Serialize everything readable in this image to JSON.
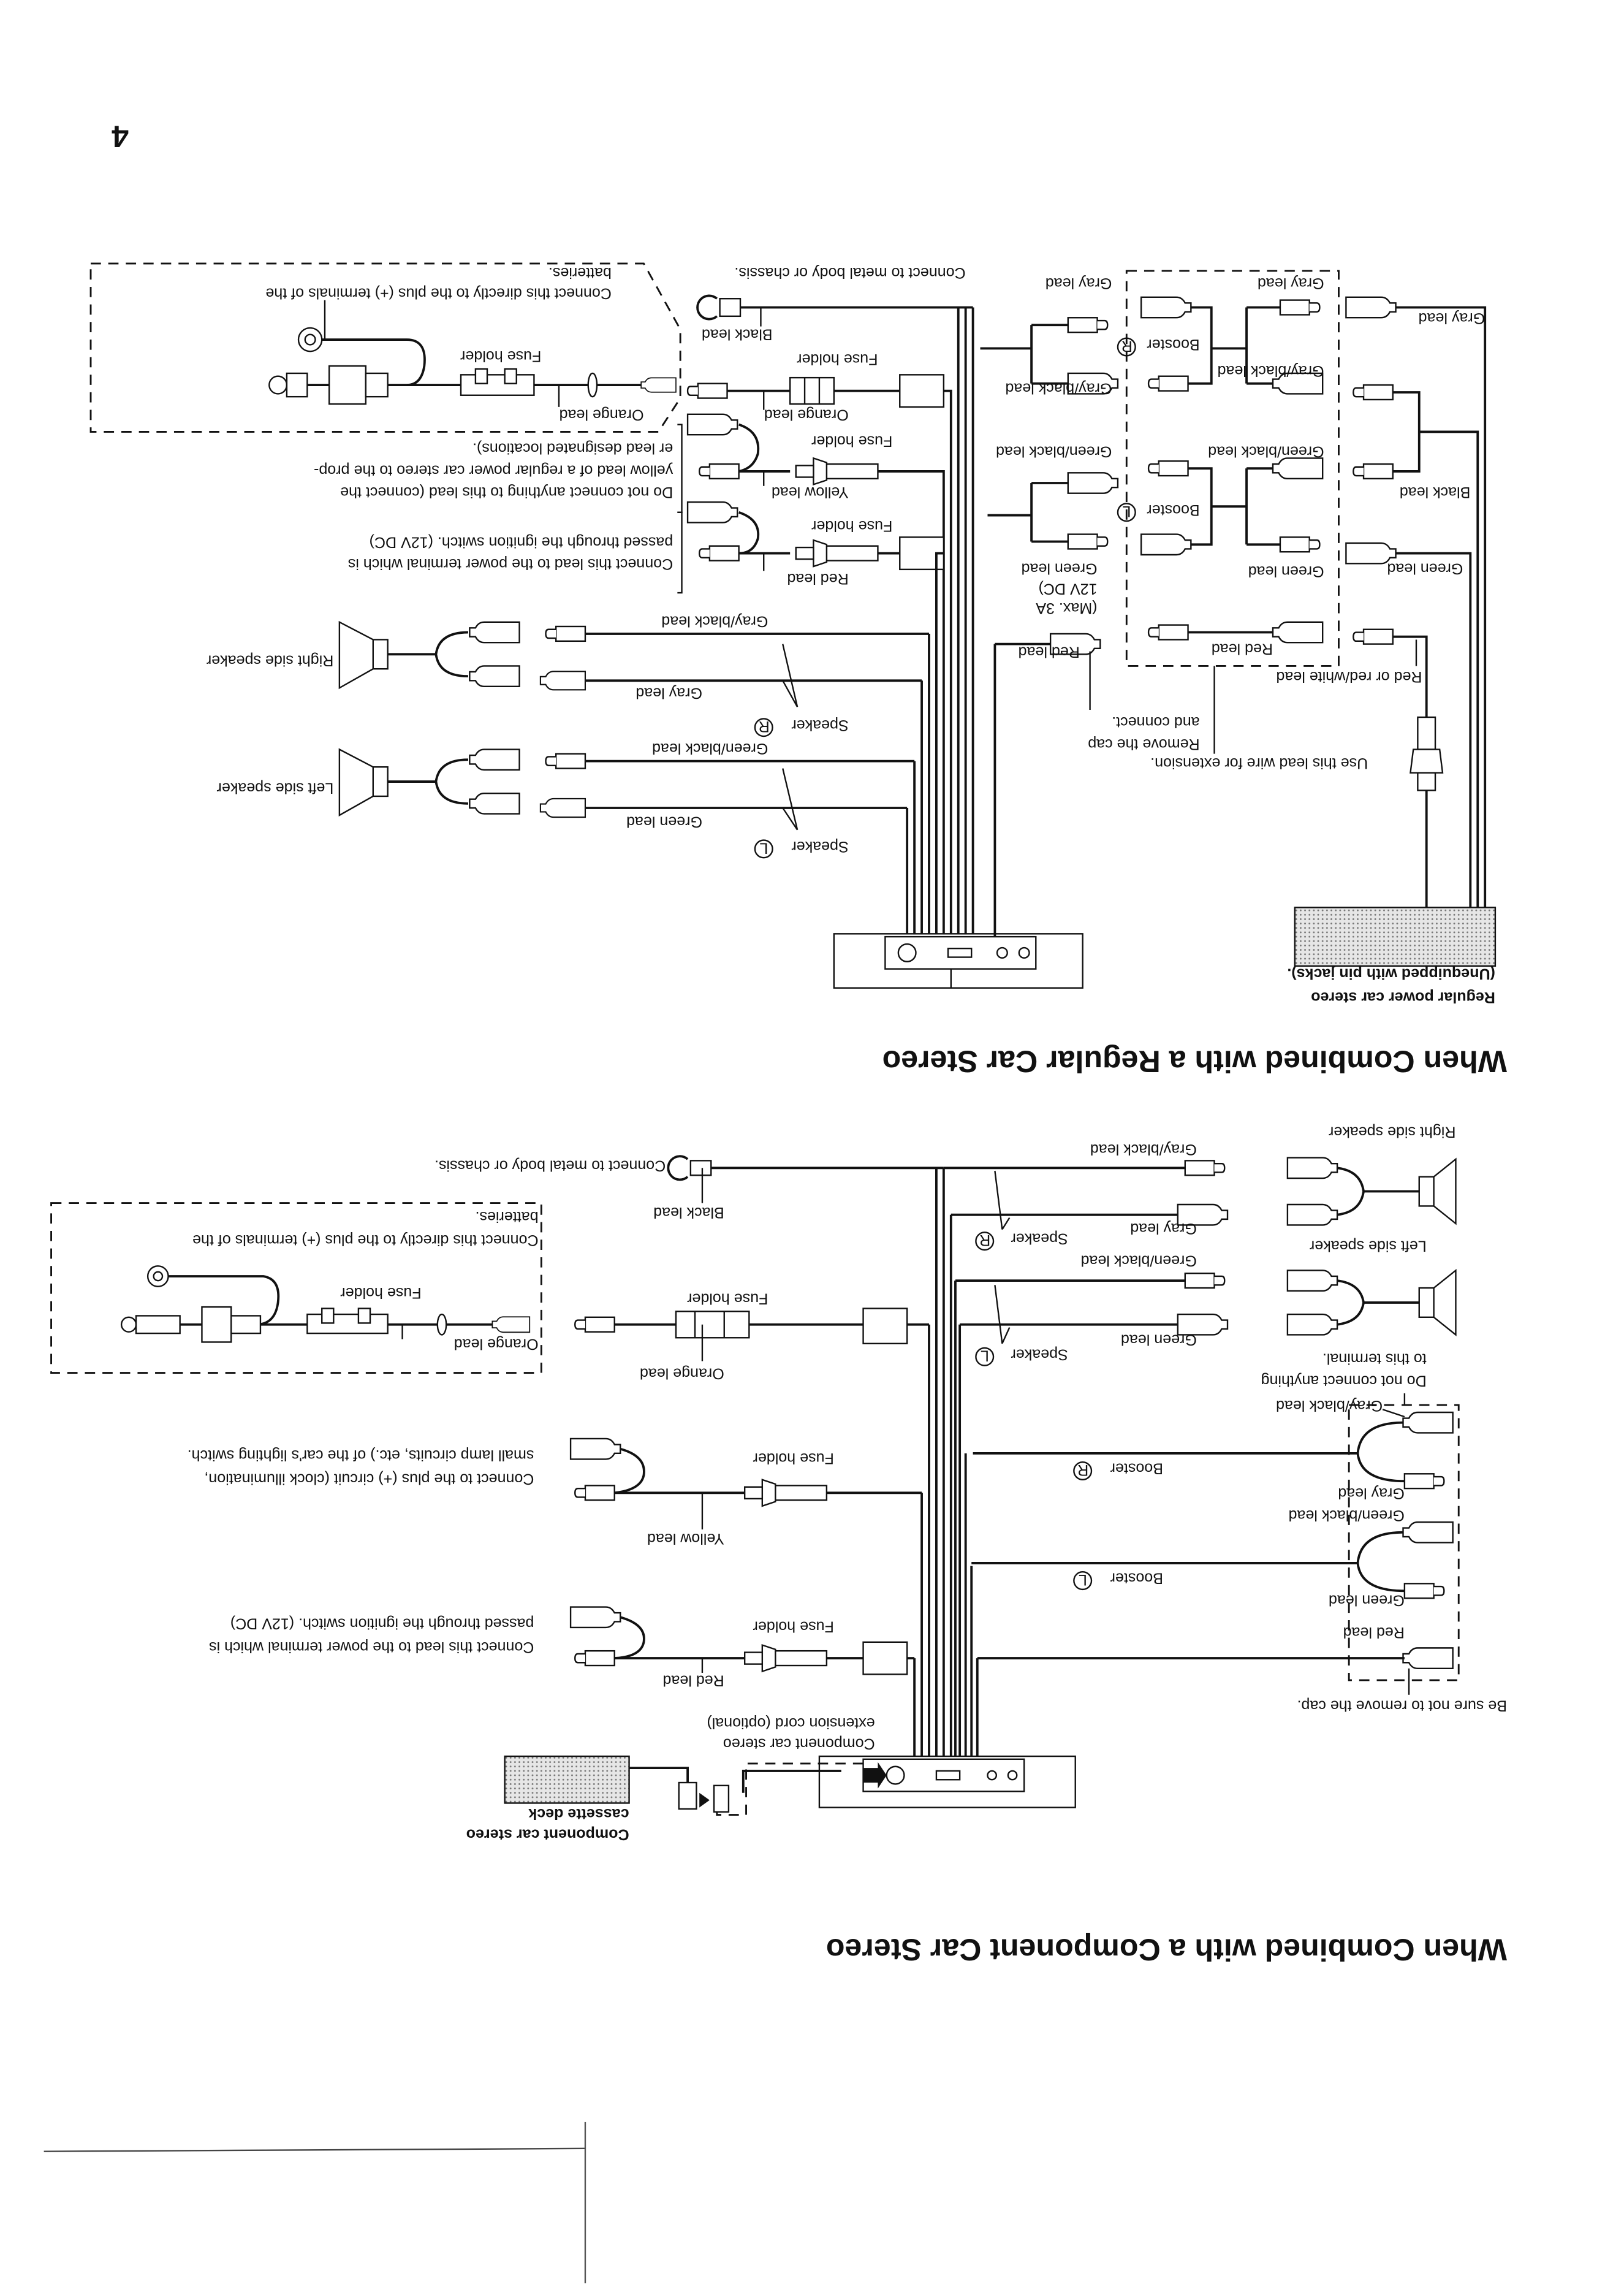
{
  "page_number": "4",
  "regular": {
    "title": "When Combined with a Regular Car Stereo",
    "battery_note": [
      "Connect this directly to the plus (+) terminals of the",
      "batteries."
    ],
    "fuse_holder": "Fuse holder",
    "orange_lead": "Orange lead",
    "black_lead": "Black lead",
    "ground_note": "Connect to metal body or chassis.",
    "yellow_lead": "Yellow lead",
    "yellow_note": [
      "Do not connect anything to this lead (connect the",
      "yellow lead of a regular power car stereo to the prop-",
      "er lead designated locations)."
    ],
    "red_lead": "Red lead",
    "red_note": [
      "Connect this lead to the power terminal which is",
      "passed through the ignition switch. (12V DC)"
    ],
    "right_speaker": "Right side speaker",
    "left_speaker": "Left side speaker",
    "gray_black_lead": "Gray/black lead",
    "gray_lead": "Gray lead",
    "green_black_lead": "Green/black lead",
    "green_lead": "Green lead",
    "speaker": "Speaker",
    "booster": "Booster",
    "R": "R",
    "L": "L",
    "max_note": [
      "(Max. 3A",
      "12V DC)"
    ],
    "remove_cap": [
      "Remove the cap",
      "and connect."
    ],
    "extension_note": "Use this lead wire for extension.",
    "red_white_lead": "Red or red/white lead",
    "stereo_label": [
      "Regular power car stereo",
      "(Unequipped with pin jacks)."
    ]
  },
  "component": {
    "title": "When Combined with a Component Car Stereo",
    "right_speaker": "Right side speaker",
    "left_speaker": "Left side speaker",
    "gray_black_lead": "Gray/black lead",
    "gray_lead": "Gray lead",
    "green_black_lead": "Green/black lead",
    "green_lead": "Green lead",
    "red_lead": "Red lead",
    "speaker": "Speaker",
    "booster": "Booster",
    "R": "R",
    "L": "L",
    "no_connect_note": [
      "Do not connect anything",
      "to this terminal."
    ],
    "cap_note": "Be sure not to remove the cap.",
    "ground_note": "Connect to metal body or chassis.",
    "black_lead": "Black lead",
    "battery_note": [
      "Connect this directly to the plus (+) terminals of the",
      "batteries."
    ],
    "fuse_holder": "Fuse holder",
    "orange_lead": "Orange lead",
    "yellow_lead": "Yellow lead",
    "yellow_note": [
      "Connect to the plus (+) circuit (clock illumination,",
      "small lamp circuits, etc.) of the car's lighting switch."
    ],
    "red_note": [
      "Connect this lead to the power terminal which is",
      "passed through the ignition switch. (12V DC)"
    ],
    "extension_cord": [
      "Component car stereo",
      "extension cord (optional)"
    ],
    "deck_label": [
      "Component car stereo",
      "cassette deck"
    ]
  }
}
